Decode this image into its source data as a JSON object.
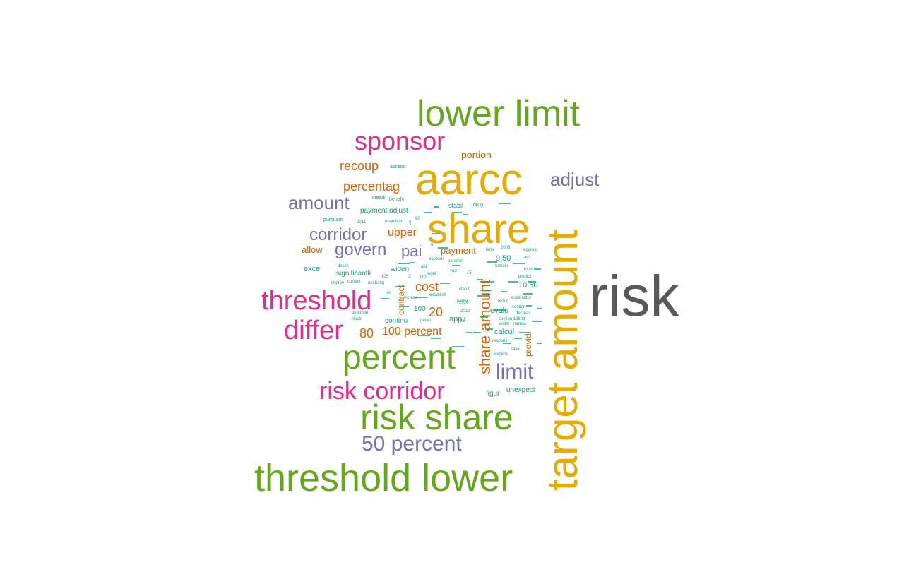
{
  "colors": {
    "gray": "#595959",
    "gold": "#e6ab02",
    "green": "#66a61e",
    "magenta": "#e7298a",
    "purple": "#7570b3",
    "orange": "#d95f02",
    "teal": "#1b9e77"
  },
  "words": [
    {
      "text": "risk",
      "color": "gray"
    },
    {
      "text": "target amount",
      "color": "gold"
    },
    {
      "text": "lower limit",
      "color": "green"
    },
    {
      "text": "aarcc",
      "color": "gold"
    },
    {
      "text": "share",
      "color": "gold"
    },
    {
      "text": "sponsor",
      "color": "magenta"
    },
    {
      "text": "threshold lower",
      "color": "green"
    },
    {
      "text": "risk share",
      "color": "green"
    },
    {
      "text": "percent",
      "color": "green"
    },
    {
      "text": "threshold",
      "color": "magenta"
    },
    {
      "text": "differ",
      "color": "magenta"
    },
    {
      "text": "risk corridor",
      "color": "magenta"
    },
    {
      "text": "50 percent",
      "color": "purple"
    },
    {
      "text": "adjust",
      "color": "purple"
    },
    {
      "text": "amount",
      "color": "purple"
    },
    {
      "text": "corridor",
      "color": "purple"
    },
    {
      "text": "govern",
      "color": "purple"
    },
    {
      "text": "pai",
      "color": "purple"
    },
    {
      "text": "limit",
      "color": "purple"
    },
    {
      "text": "share amount",
      "color": "orange"
    },
    {
      "text": "recoup",
      "color": "orange"
    },
    {
      "text": "percentag",
      "color": "orange"
    },
    {
      "text": "upper",
      "color": "orange"
    },
    {
      "text": "cost",
      "color": "orange"
    },
    {
      "text": "100 percent",
      "color": "orange"
    },
    {
      "text": "80",
      "color": "orange"
    },
    {
      "text": "20",
      "color": "orange"
    },
    {
      "text": "portion",
      "color": "orange"
    },
    {
      "text": "allow",
      "color": "orange"
    },
    {
      "text": "payment",
      "color": "orange"
    },
    {
      "text": "contract",
      "color": "orange"
    },
    {
      "text": "provid",
      "color": "orange"
    },
    {
      "text": "exce",
      "color": "teal"
    },
    {
      "text": "significantli",
      "color": "teal"
    },
    {
      "text": "widen",
      "color": "teal"
    },
    {
      "text": "continu",
      "color": "teal"
    },
    {
      "text": "appli",
      "color": "teal"
    },
    {
      "text": "evalu",
      "color": "teal"
    },
    {
      "text": "calcul",
      "color": "teal"
    },
    {
      "text": "10.50",
      "color": "teal"
    },
    {
      "text": "9.50",
      "color": "teal"
    },
    {
      "text": "payment adjust",
      "color": "teal"
    },
    {
      "text": "stabil",
      "color": "teal"
    },
    {
      "text": "figur",
      "color": "teal"
    },
    {
      "text": "unexpect",
      "color": "teal"
    },
    {
      "text": "100",
      "color": "teal"
    },
    {
      "text": "1",
      "color": "teal"
    },
    {
      "text": "assess",
      "color": "teal"
    },
    {
      "text": "benefit",
      "color": "teal"
    },
    {
      "text": "steadi",
      "color": "teal"
    },
    {
      "text": "drug",
      "color": "teal"
    },
    {
      "text": "pursuant",
      "color": "teal"
    },
    {
      "text": "2011",
      "color": "teal"
    },
    {
      "text": "unanticip",
      "color": "teal"
    },
    {
      "text": "90",
      "color": "teal"
    },
    {
      "text": "declin",
      "color": "teal"
    },
    {
      "text": "improv",
      "color": "teal"
    },
    {
      "text": "current",
      "color": "teal"
    },
    {
      "text": "unchang",
      "color": "teal"
    },
    {
      "text": "105",
      "color": "teal"
    },
    {
      "text": "rel",
      "color": "teal"
    },
    {
      "text": "determin",
      "color": "teal"
    },
    {
      "text": "illustr",
      "color": "teal"
    },
    {
      "text": "increas",
      "color": "teal"
    },
    {
      "text": "gener",
      "color": "teal"
    },
    {
      "text": "95",
      "color": "teal"
    },
    {
      "text": "abil",
      "color": "teal"
    },
    {
      "text": "exposur",
      "color": "teal"
    },
    {
      "text": "paramet",
      "color": "teal"
    },
    {
      "text": "vari",
      "color": "teal"
    },
    {
      "text": "regul",
      "color": "teal"
    },
    {
      "text": "15",
      "color": "teal"
    },
    {
      "text": "110",
      "color": "teal"
    },
    {
      "text": "3",
      "color": "teal"
    },
    {
      "text": "5",
      "color": "teal"
    },
    {
      "text": "establish",
      "color": "teal"
    },
    {
      "text": "statut",
      "color": "teal"
    },
    {
      "text": "permit",
      "color": "teal"
    },
    {
      "text": "2016",
      "color": "teal"
    },
    {
      "text": "2012",
      "color": "teal"
    },
    {
      "text": "time",
      "color": "teal"
    },
    {
      "text": "2008",
      "color": "teal"
    },
    {
      "text": "aggreg",
      "color": "teal"
    },
    {
      "text": "act",
      "color": "teal"
    },
    {
      "text": "remain",
      "color": "teal"
    },
    {
      "text": "found",
      "color": "teal"
    },
    {
      "text": "predict",
      "color": "teal"
    },
    {
      "text": "reduc",
      "color": "teal"
    },
    {
      "text": "expenditur",
      "color": "teal"
    },
    {
      "text": "section",
      "color": "teal"
    },
    {
      "text": "decreas",
      "color": "teal"
    },
    {
      "text": "section 1860d",
      "color": "teal"
    },
    {
      "text": "wider",
      "color": "teal"
    },
    {
      "text": "narrow",
      "color": "teal"
    },
    {
      "text": "respons",
      "color": "teal"
    },
    {
      "text": "save",
      "color": "teal"
    },
    {
      "text": "expens",
      "color": "teal"
    }
  ]
}
